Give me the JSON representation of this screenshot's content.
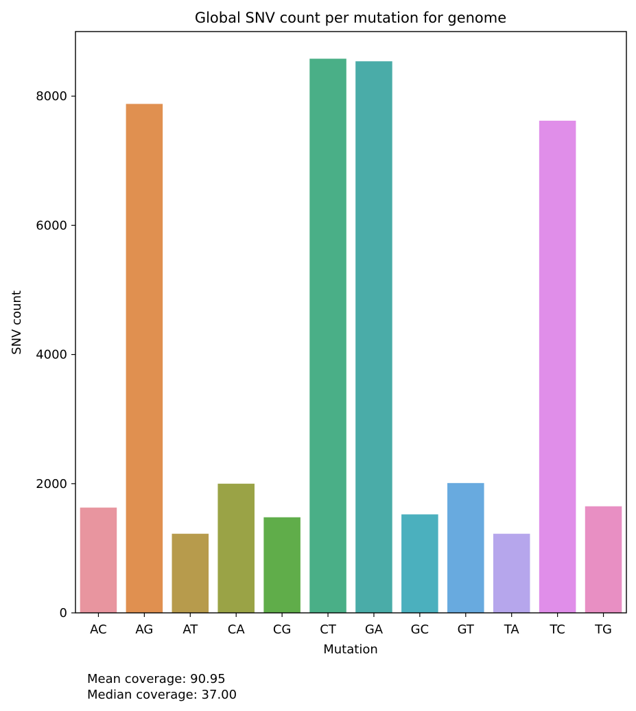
{
  "chart_data": {
    "type": "bar",
    "title": "Global SNV count per mutation for genome",
    "xlabel": "Mutation",
    "ylabel": "SNV count",
    "ylim": [
      0,
      9000
    ],
    "yticks": [
      0,
      2000,
      4000,
      6000,
      8000
    ],
    "grid": false,
    "categories": [
      "AC",
      "AG",
      "AT",
      "CA",
      "CG",
      "CT",
      "GA",
      "GC",
      "GT",
      "TA",
      "TC",
      "TG"
    ],
    "values": [
      1630,
      7880,
      1225,
      2000,
      1480,
      8580,
      8540,
      1525,
      2010,
      1225,
      7620,
      1650
    ],
    "colors": [
      "#e8959f",
      "#e09050",
      "#b79b4c",
      "#9aa346",
      "#60ad4a",
      "#4aaf87",
      "#4aaca8",
      "#4bb0be",
      "#68aadf",
      "#b6a6ec",
      "#e08ee9",
      "#e88fc3"
    ]
  },
  "annotations": {
    "mean_coverage": "Mean coverage: 90.95",
    "median_coverage": "Median coverage: 37.00"
  }
}
